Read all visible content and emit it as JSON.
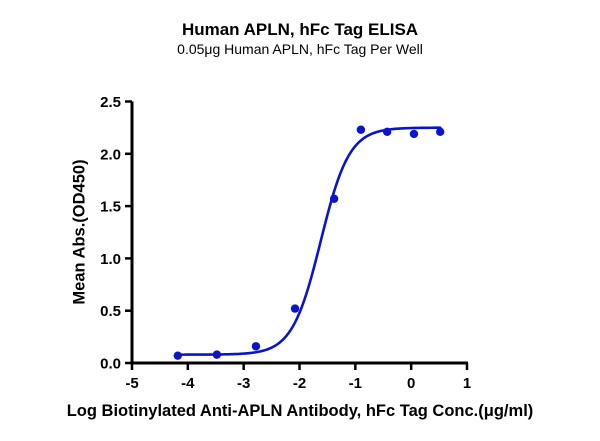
{
  "chart_data": {
    "type": "scatter",
    "title": "Human APLN, hFc Tag ELISA",
    "subtitle": "0.05μg Human APLN, hFc Tag Per Well",
    "xlabel": "Log Biotinylated Anti-APLN Antibody, hFc Tag Conc.(μg/ml)",
    "ylabel": "Mean Abs.(OD450)",
    "xlim": [
      -5,
      1
    ],
    "ylim": [
      0,
      2.5
    ],
    "xticks": [
      "-5",
      "-4",
      "-3",
      "-2",
      "-1",
      "0",
      "1"
    ],
    "yticks": [
      "0.0",
      "0.5",
      "1.0",
      "1.5",
      "2.0",
      "2.5"
    ],
    "grid": false,
    "legend": null,
    "series": [
      {
        "name": "Mean Abs.",
        "color": "#0a14c8",
        "x": [
          -4.18,
          -3.48,
          -2.78,
          -2.08,
          -1.38,
          -0.9,
          -0.43,
          0.05,
          0.52
        ],
        "y": [
          0.07,
          0.08,
          0.16,
          0.52,
          1.57,
          2.23,
          2.21,
          2.19,
          2.21
        ]
      }
    ],
    "fit": {
      "model": "4PL",
      "color": "#0a14c8",
      "bottom": 0.08,
      "top": 2.25,
      "logEC50": -1.62,
      "hill": 1.7,
      "x_range": [
        -4.18,
        0.52
      ]
    }
  }
}
